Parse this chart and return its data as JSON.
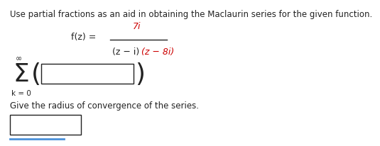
{
  "bg_color": "#ffffff",
  "text_color": "#222222",
  "red_color": "#cc0000",
  "instruction_text": "Use partial fractions as an aid in obtaining the Maclaurin series for the given function.",
  "fz_label": "f(z) =",
  "numerator": "7i",
  "denom_text": "(z − i)(z − 8i)",
  "denom_black": "(z − i)",
  "denom_red": "(z − 8i)",
  "sigma_symbol": "Σ",
  "k_label": "k = 0",
  "inf_label": "∞",
  "convergence_text": "Give the radius of convergence of the series.",
  "bottom_line_color": "#4a90d9"
}
